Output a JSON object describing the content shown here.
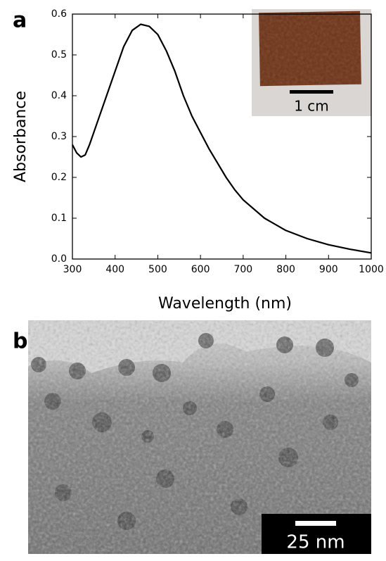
{
  "chart_data": {
    "type": "line",
    "panel_label": "a",
    "x_label": "Wavelength (nm)",
    "y_label": "Absorbance",
    "x": [
      300,
      310,
      320,
      330,
      340,
      360,
      380,
      400,
      420,
      440,
      460,
      480,
      500,
      520,
      540,
      560,
      580,
      600,
      620,
      640,
      660,
      680,
      700,
      750,
      800,
      850,
      900,
      950,
      1000
    ],
    "values": [
      0.28,
      0.26,
      0.25,
      0.255,
      0.28,
      0.34,
      0.4,
      0.46,
      0.52,
      0.56,
      0.575,
      0.57,
      0.55,
      0.51,
      0.46,
      0.4,
      0.35,
      0.31,
      0.27,
      0.235,
      0.2,
      0.17,
      0.145,
      0.1,
      0.07,
      0.05,
      0.035,
      0.024,
      0.015
    ],
    "color": "#000000",
    "xlim": [
      300,
      1000
    ],
    "xticks": [
      300,
      400,
      500,
      600,
      700,
      800,
      900,
      1000
    ],
    "ylim": [
      0,
      0.6
    ],
    "yticks": [
      {
        "value": 0,
        "label": "0.0"
      },
      0.1,
      0.2,
      0.3,
      0.4,
      0.5,
      0.6
    ],
    "inset_scale_label": "1 cm"
  },
  "image_panel": {
    "label": "b",
    "scale_label": "25 nm"
  }
}
